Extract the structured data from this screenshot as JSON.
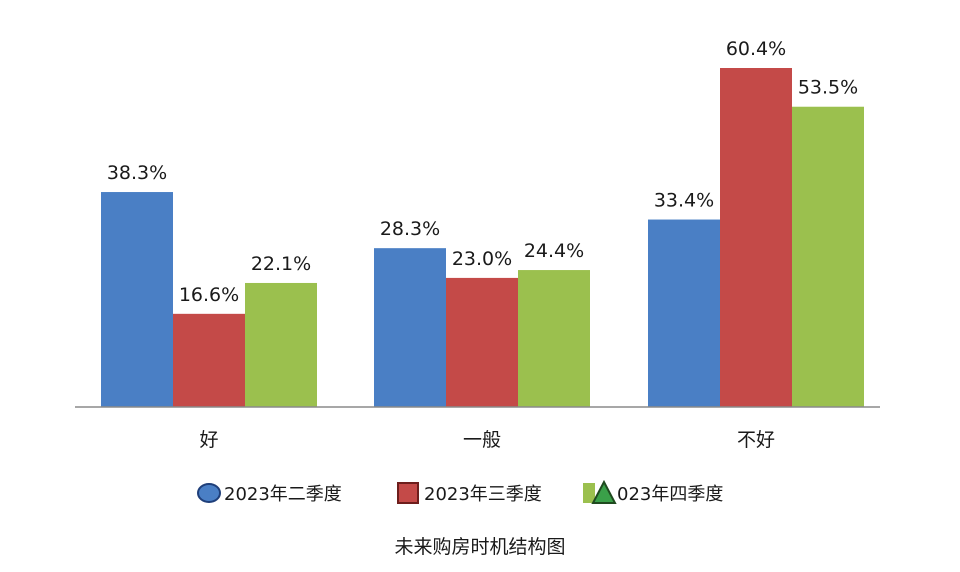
{
  "chart_data": {
    "type": "bar",
    "categories": [
      "好",
      "一般",
      "不好"
    ],
    "series": [
      {
        "name": "2023年二季度",
        "values": [
          38.3,
          28.3,
          33.4
        ],
        "labels": [
          "38.3%",
          "28.3%",
          "33.4%"
        ],
        "color": "#4a7fc5"
      },
      {
        "name": "2023年三季度",
        "values": [
          16.6,
          23.0,
          60.4
        ],
        "labels": [
          "16.6%",
          "23.0%",
          "60.4%"
        ],
        "color": "#c44a48"
      },
      {
        "name": "2023年四季度",
        "values": [
          22.1,
          24.4,
          53.5
        ],
        "labels": [
          "22.1%",
          "24.4%",
          "53.5%"
        ],
        "color": "#9bc04e"
      }
    ],
    "legend_texts": [
      "2023年二季度",
      "2023年三季度",
      "023年四季度"
    ],
    "legend_markers": [
      "ellipse",
      "square",
      "triangle"
    ],
    "title": "未来购房时机结构图",
    "ylim": [
      0,
      60.4
    ],
    "grid": false,
    "legend_position": "bottom"
  }
}
